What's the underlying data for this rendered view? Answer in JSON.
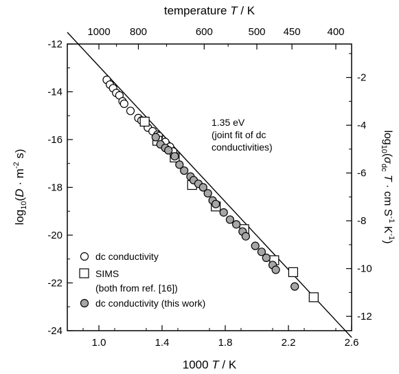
{
  "chart_data": {
    "type": "scatter",
    "xlabel": "1000 T / K",
    "xlabel_parts": {
      "pre": "1000 ",
      "var": "T",
      "post": " / K"
    },
    "x2label": "temperature T / K",
    "x2label_parts": {
      "pre": "temperature ",
      "var": "T",
      "post": " / K"
    },
    "ylabel_left": "log10(D · m^-2 s)",
    "ylabel_left_parts": {
      "pre": "log",
      "sub": "10",
      "open": "(",
      "var": "D",
      "mid": " · m",
      "sup": "-2",
      "post": " s)"
    },
    "ylabel_right": "log10(σdc T · cm S^-1 K^-1)",
    "ylabel_right_parts": {
      "pre": "log",
      "sub": "10",
      "open": "(",
      "sigma": "σ",
      "sigma_sub": "dc",
      "var": " T",
      "mid": " · cm S",
      "sup1": "-1",
      "mid2": " K",
      "sup2": "-1",
      "post": ")"
    },
    "xlim": [
      0.8,
      2.6
    ],
    "ylim_left": [
      -24,
      -12
    ],
    "ylim_right": [
      -12.6,
      -0.6
    ],
    "x_ticks": [
      "1.0",
      "1.4",
      "1.8",
      "2.2",
      "2.6"
    ],
    "x_tick_values": [
      1.0,
      1.4,
      1.8,
      2.2,
      2.6
    ],
    "x2_ticks": [
      "1000",
      "800",
      "600",
      "500",
      "450",
      "400"
    ],
    "x2_tick_values": [
      1000,
      800,
      600,
      500,
      450,
      400
    ],
    "y_left_ticks": [
      "-12",
      "-14",
      "-16",
      "-18",
      "-20",
      "-22",
      "-24"
    ],
    "y_left_tick_values": [
      -12,
      -14,
      -16,
      -18,
      -20,
      -22,
      -24
    ],
    "y_right_ticks": [
      "-2",
      "-4",
      "-6",
      "-8",
      "-10",
      "-12"
    ],
    "y_right_tick_values": [
      -2,
      -4,
      -6,
      -8,
      -10,
      -12
    ],
    "annotation": [
      "1.35 eV",
      "(joint fit of dc",
      "conductivities)"
    ],
    "fit_line": {
      "x": [
        0.8,
        2.6
      ],
      "y": [
        -11.51,
        -24.28
      ]
    },
    "series": [
      {
        "name": "dc conductivity",
        "marker": "open-circle",
        "points": [
          [
            1.05,
            -13.5
          ],
          [
            1.07,
            -13.7
          ],
          [
            1.09,
            -13.85
          ],
          [
            1.11,
            -14.05
          ],
          [
            1.13,
            -14.15
          ],
          [
            1.15,
            -14.4
          ],
          [
            1.16,
            -14.5
          ],
          [
            1.2,
            -14.8
          ],
          [
            1.25,
            -15.1
          ],
          [
            1.27,
            -15.2
          ],
          [
            1.31,
            -15.5
          ],
          [
            1.34,
            -15.65
          ],
          [
            1.37,
            -15.8
          ],
          [
            1.38,
            -15.85
          ],
          [
            1.42,
            -16.1
          ],
          [
            1.45,
            -16.3
          ],
          [
            1.47,
            -16.5
          ]
        ]
      },
      {
        "name": "SIMS",
        "marker": "open-square",
        "points": [
          [
            1.29,
            -15.25
          ],
          [
            1.37,
            -16.05
          ],
          [
            1.48,
            -16.75
          ],
          [
            1.59,
            -17.9
          ],
          [
            1.74,
            -18.8
          ],
          [
            1.92,
            -19.75
          ],
          [
            2.11,
            -21.05
          ],
          [
            2.23,
            -21.55
          ],
          [
            2.36,
            -22.6
          ]
        ]
      },
      {
        "name": "(both from ref. [16])",
        "marker": "none",
        "points": []
      },
      {
        "name": "dc conductivity (this work)",
        "marker": "filled-circle",
        "points": [
          [
            1.36,
            -15.9
          ],
          [
            1.39,
            -16.2
          ],
          [
            1.42,
            -16.35
          ],
          [
            1.44,
            -16.45
          ],
          [
            1.48,
            -16.7
          ],
          [
            1.51,
            -17.05
          ],
          [
            1.54,
            -17.3
          ],
          [
            1.58,
            -17.55
          ],
          [
            1.6,
            -17.7
          ],
          [
            1.63,
            -17.85
          ],
          [
            1.66,
            -18.0
          ],
          [
            1.69,
            -18.25
          ],
          [
            1.72,
            -18.55
          ],
          [
            1.74,
            -18.7
          ],
          [
            1.79,
            -19.05
          ],
          [
            1.83,
            -19.35
          ],
          [
            1.87,
            -19.55
          ],
          [
            1.91,
            -19.85
          ],
          [
            1.93,
            -20.05
          ],
          [
            1.99,
            -20.45
          ],
          [
            2.03,
            -20.7
          ],
          [
            2.06,
            -20.95
          ],
          [
            2.1,
            -21.25
          ],
          [
            2.12,
            -21.45
          ],
          [
            2.24,
            -22.15
          ]
        ]
      }
    ]
  }
}
